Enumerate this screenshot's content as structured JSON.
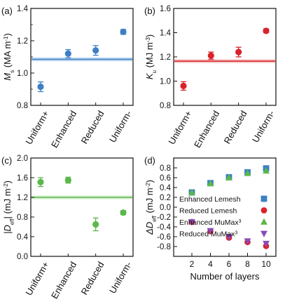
{
  "colors": {
    "blue": "#3d7fc4",
    "red": "#d9242b",
    "green": "#5ab84a",
    "purple": "#8a49b8",
    "band_blue": "#aed0ee",
    "band_red": "#f3b4b4",
    "band_green": "#cbe8c2"
  },
  "chart_data": [
    {
      "panel": "(a)",
      "type": "scatter",
      "ylabel_main": "M",
      "ylabel_sub": "s",
      "ylabel_unit": " (MA m",
      "ylabel_sup": "-1",
      "ylabel_close": ")",
      "categories": [
        "Uniform+",
        "Enhanced",
        "Reduced",
        "Uniform-"
      ],
      "values": [
        0.915,
        1.12,
        1.14,
        1.255
      ],
      "errors": [
        0.03,
        0.025,
        0.03,
        0.015
      ],
      "ylim": [
        0.8,
        1.4
      ],
      "yticks": [
        "0.8",
        "1.0",
        "1.2",
        "1.4"
      ],
      "yticks_v": [
        0.8,
        1.0,
        1.2,
        1.4
      ],
      "reference_line": 1.085,
      "reference_band": 0.012,
      "color": "blue",
      "band_color": "band_blue"
    },
    {
      "panel": "(b)",
      "type": "scatter",
      "ylabel_main": "K",
      "ylabel_sub": "u",
      "ylabel_unit": " (MJ m",
      "ylabel_sup": "-3",
      "ylabel_close": ")",
      "categories": [
        "Uniform+",
        "Enhanced",
        "Reduced",
        "Uniform-"
      ],
      "values": [
        0.96,
        1.21,
        1.24,
        1.415
      ],
      "errors": [
        0.035,
        0.03,
        0.04,
        0.015
      ],
      "ylim": [
        0.8,
        1.6
      ],
      "yticks": [
        "0.8",
        "1.0",
        "1.2",
        "1.4",
        "1.6"
      ],
      "yticks_v": [
        0.8,
        1.0,
        1.2,
        1.4,
        1.6
      ],
      "reference_line": 1.165,
      "reference_band": 0.016,
      "color": "red",
      "band_color": "band_red"
    },
    {
      "panel": "(c)",
      "type": "scatter",
      "ylabel_main": "|D",
      "ylabel_sub": "eff",
      "ylabel_unit": "| (mJ m",
      "ylabel_sup": "-2",
      "ylabel_close": ")",
      "categories": [
        "Uniform+",
        "Enhanced",
        "Reduced",
        "Uniform-"
      ],
      "values": [
        1.51,
        1.55,
        0.65,
        0.89
      ],
      "errors": [
        0.09,
        0.06,
        0.13,
        0.04
      ],
      "ylim": [
        0.0,
        2.0
      ],
      "yticks": [
        "0.0",
        "0.4",
        "0.8",
        "1.2",
        "1.6",
        "2.0"
      ],
      "yticks_v": [
        0.0,
        0.4,
        0.8,
        1.2,
        1.6,
        2.0
      ],
      "reference_line": 1.2,
      "reference_band": 0.04,
      "color": "green",
      "band_color": "band_green"
    },
    {
      "panel": "(d)",
      "type": "scatter",
      "ylabel_main": "ΔD",
      "ylabel_sub": "eff",
      "ylabel_unit": " (mJ m",
      "ylabel_sup": "-2",
      "ylabel_close": ")",
      "xlabel": "Number of layers",
      "x": [
        2,
        4,
        6,
        8,
        10
      ],
      "xticks": [
        "2",
        "4",
        "6",
        "8",
        "10"
      ],
      "ylim": [
        -1.0,
        1.0
      ],
      "yticks": [
        "-0.8",
        "-0.6",
        "-0.4",
        "-0.2",
        "0.0",
        "0.2",
        "0.4",
        "0.6",
        "0.8"
      ],
      "yticks_v": [
        -0.8,
        -0.6,
        -0.4,
        -0.2,
        0.0,
        0.2,
        0.4,
        0.6,
        0.8
      ],
      "series": [
        {
          "name": "Enhanced Lemesh",
          "marker": "square",
          "color": "blue",
          "values": [
            0.3,
            0.49,
            0.61,
            0.71,
            0.79
          ]
        },
        {
          "name": "Reduced Lemesh",
          "marker": "circle",
          "color": "red",
          "values": [
            -0.3,
            -0.49,
            -0.62,
            -0.71,
            -0.79
          ]
        },
        {
          "name": "Enhanced MuMax",
          "sup": "3",
          "marker": "triangle-up",
          "color": "green",
          "values": [
            0.3,
            0.48,
            0.6,
            0.69,
            0.74
          ]
        },
        {
          "name": "Reduced MuMax",
          "sup": "3",
          "marker": "triangle-down",
          "color": "purple",
          "values": [
            -0.3,
            -0.48,
            -0.6,
            -0.69,
            -0.74
          ]
        }
      ]
    }
  ]
}
